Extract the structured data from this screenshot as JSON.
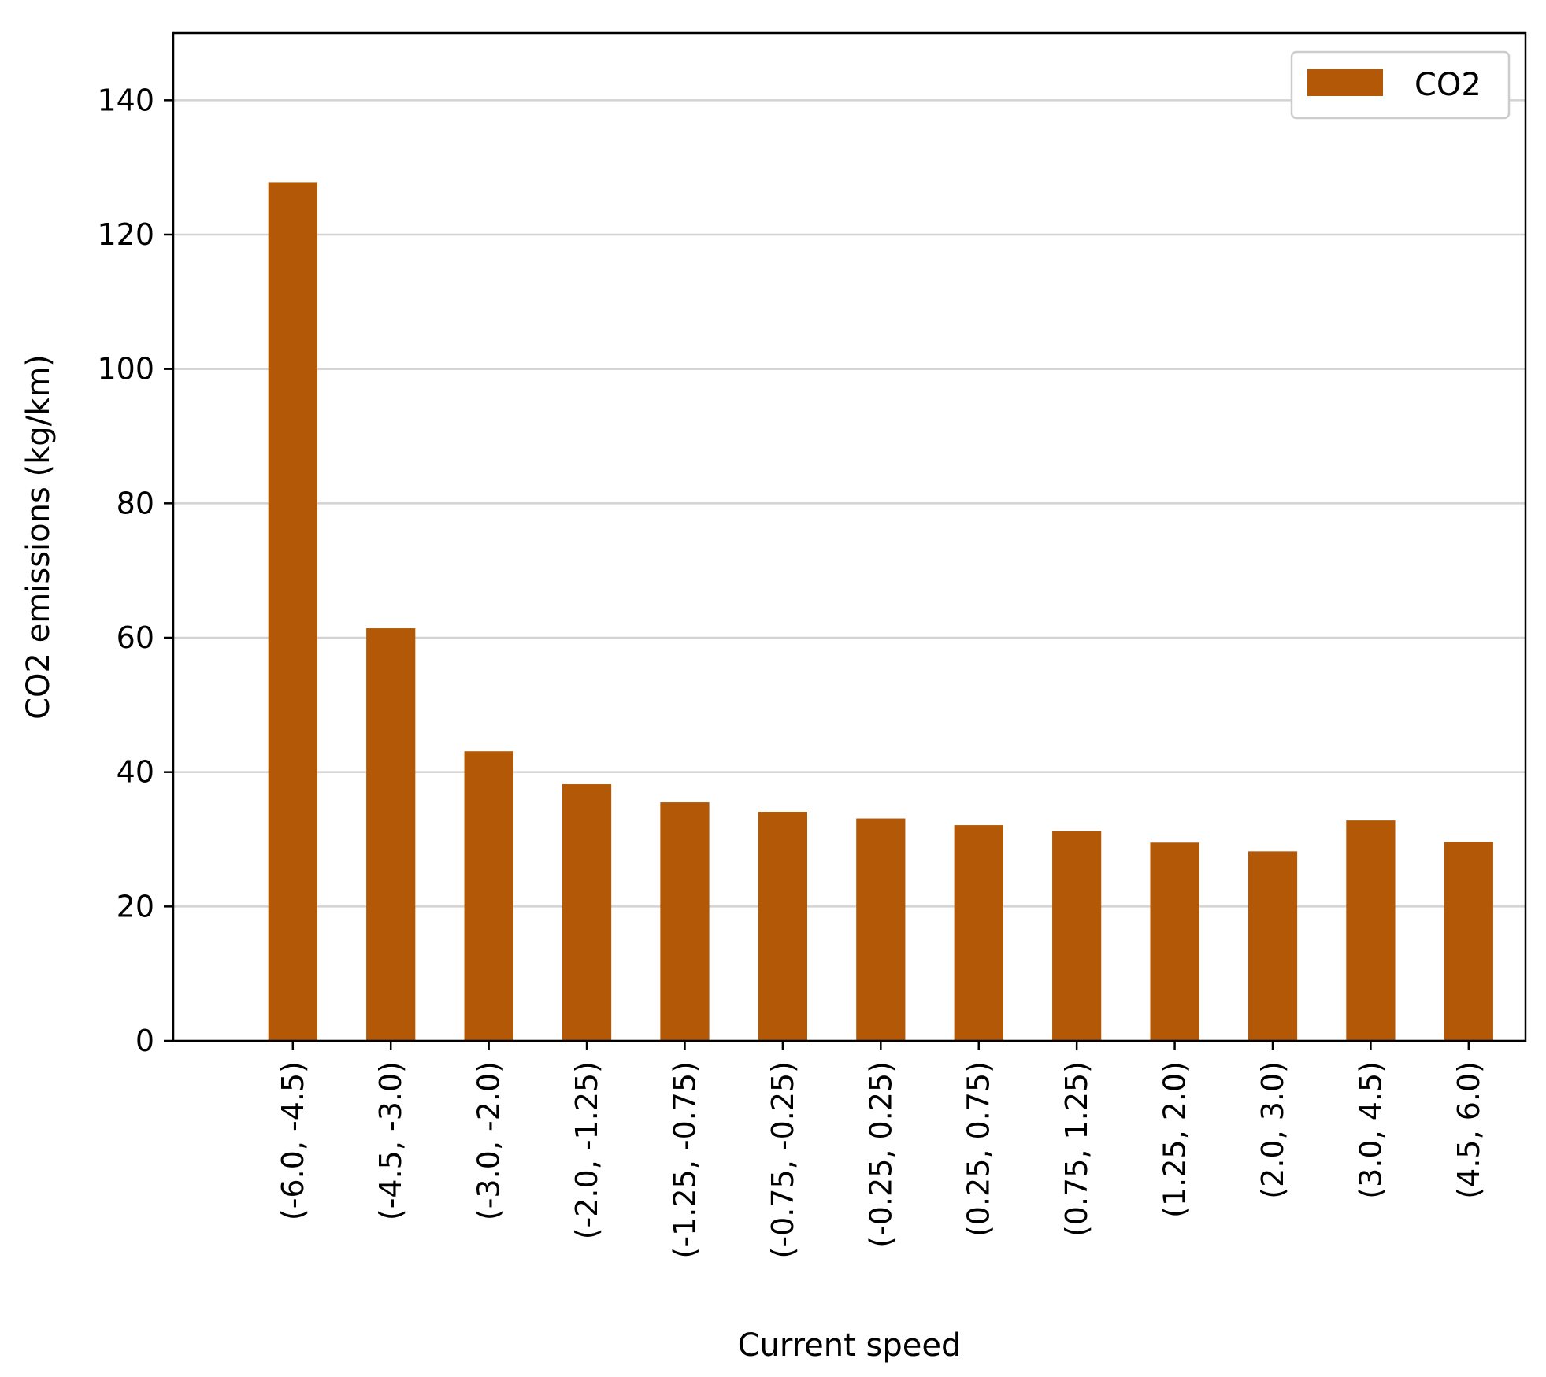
{
  "chart_data": {
    "type": "bar",
    "title": "",
    "xlabel": "Current speed",
    "ylabel": "CO2 emissions (kg/km)",
    "categories": [
      "(-6.0, -4.5)",
      "(-4.5, -3.0)",
      "(-3.0, -2.0)",
      "(-2.0, -1.25)",
      "(-1.25, -0.75)",
      "(-0.75, -0.25)",
      "(-0.25, 0.25)",
      "(0.25, 0.75)",
      "(0.75, 1.25)",
      "(1.25, 2.0)",
      "(2.0, 3.0)",
      "(3.0, 4.5)",
      "(4.5, 6.0)"
    ],
    "series": [
      {
        "name": "CO2",
        "color": "#b35806",
        "values": [
          127.8,
          61.4,
          43.1,
          38.2,
          35.5,
          34.1,
          33.1,
          32.1,
          31.2,
          29.5,
          28.2,
          32.8,
          29.6
        ]
      }
    ],
    "ylim": [
      0,
      150
    ],
    "yticks": [
      0,
      20,
      40,
      60,
      80,
      100,
      120,
      140
    ],
    "ytick_labels": [
      "0",
      "20",
      "40",
      "60",
      "80",
      "100",
      "120",
      "140"
    ],
    "grid": "horizontal",
    "legend_position": "top-right",
    "xtick_rotation": "vertical"
  }
}
